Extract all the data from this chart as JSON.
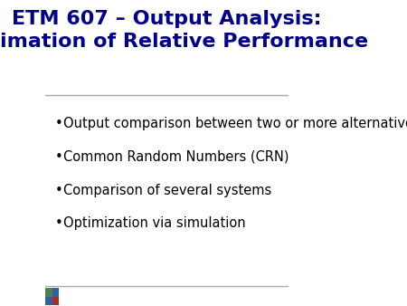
{
  "title_line1": "ETM 607 – Output Analysis:",
  "title_line2": "Estimation of Relative Performance",
  "title_color": "#00008B",
  "title_fontsize": 16,
  "bullet_points": [
    "Output comparison between two or more alternative systems",
    "Common Random Numbers (CRN)",
    "Comparison of several systems",
    "Optimization via simulation"
  ],
  "bullet_color": "#000000",
  "bullet_fontsize": 10.5,
  "background_color": "#FFFFFF",
  "separator_color": "#AAAAAA",
  "footer_line_color": "#AAAAAA",
  "bullet_symbol": "•"
}
